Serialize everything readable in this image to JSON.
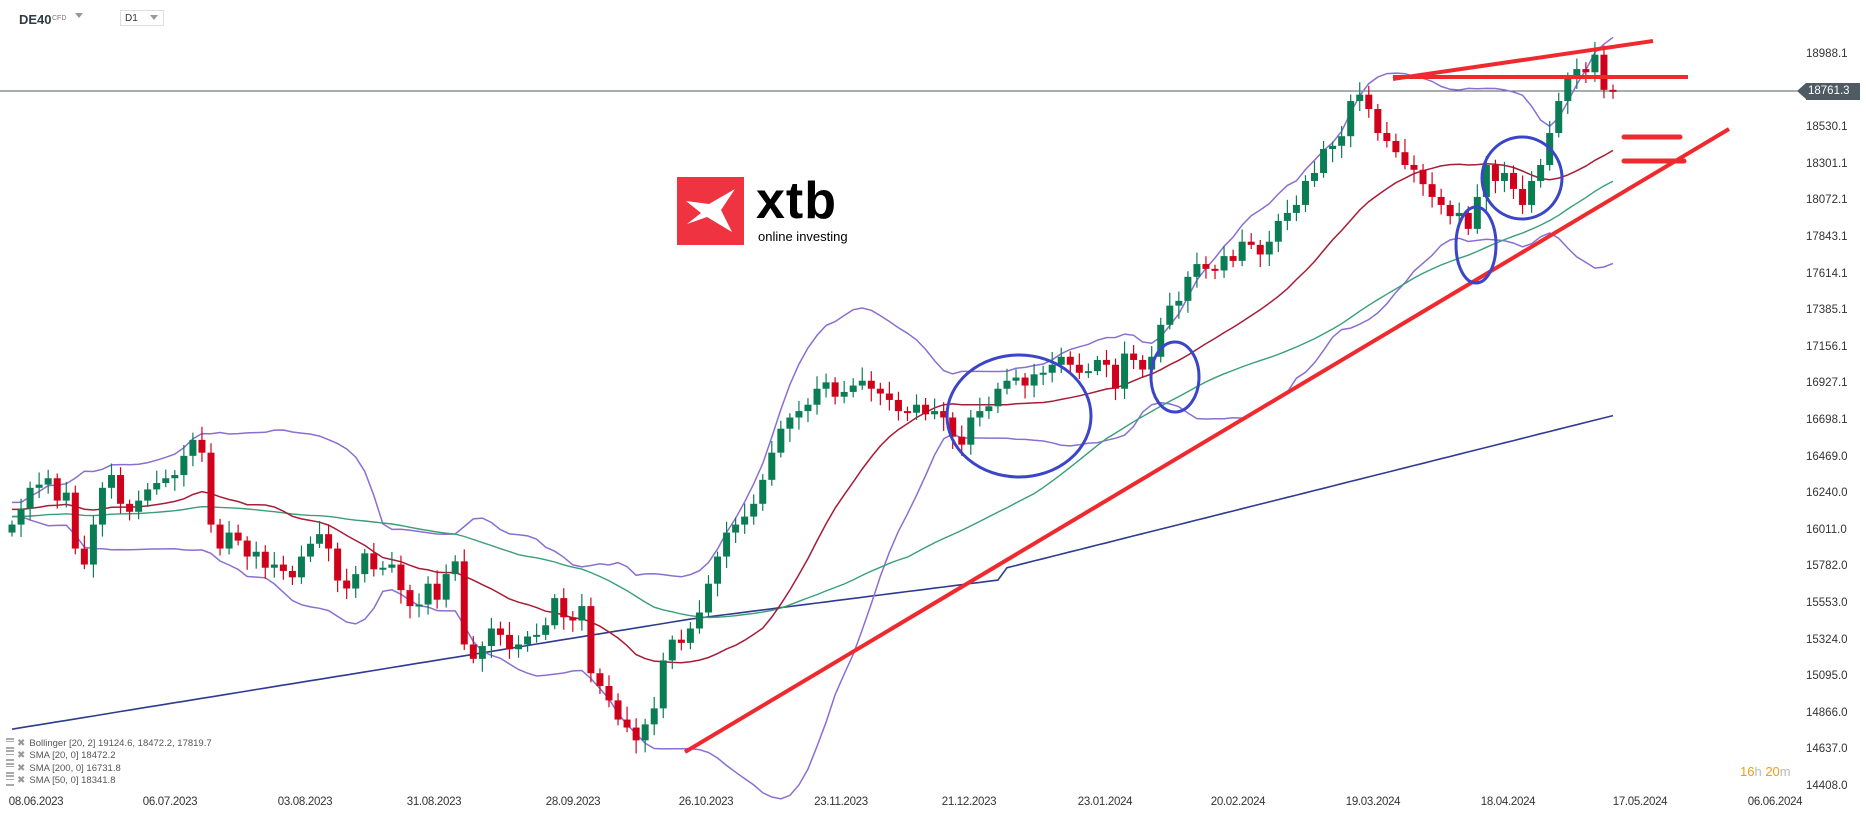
{
  "header": {
    "symbol": "DE40",
    "symbol_type": "CFD",
    "timeframe": "D1"
  },
  "logo": {
    "brand": "xtb",
    "tagline": "online investing",
    "color": "#ef3340"
  },
  "price_axis": {
    "labels": [
      "18988.1",
      "18530.1",
      "18301.1",
      "18072.1",
      "17843.1",
      "17614.1",
      "17385.1",
      "17156.1",
      "16927.1",
      "16698.1",
      "16469.0",
      "16240.0",
      "16011.0",
      "15782.0",
      "15553.0",
      "15324.0",
      "15095.0",
      "14866.0",
      "14637.0",
      "14408.0"
    ],
    "current_price": "18761.3"
  },
  "time_axis": {
    "labels": [
      "08.06.2023",
      "06.07.2023",
      "03.08.2023",
      "31.08.2023",
      "28.09.2023",
      "26.10.2023",
      "23.11.2023",
      "21.12.2023",
      "23.01.2024",
      "20.02.2024",
      "19.03.2024",
      "18.04.2024",
      "17.05.2024",
      "06.06.2024"
    ]
  },
  "timer": {
    "hours": "16",
    "h_unit": "h",
    "minutes": "20",
    "m_unit": "m"
  },
  "legend": [
    {
      "label": "Bollinger  [20, 2] 19124.6,  18472.2,  17819.7"
    },
    {
      "label": "SMA [20, 0] 18472.2"
    },
    {
      "label": "SMA [200, 0] 16731.8"
    },
    {
      "label": "SMA [50, 0] 18341.8"
    }
  ],
  "colors": {
    "bull": "#0b7d55",
    "bear": "#d0021b",
    "bollinger": "#8a6fd1",
    "sma20": "#a51d36",
    "sma50": "#3a9e78",
    "sma200": "#2e3b8f",
    "trendline": "#ee2a2f",
    "ellipse": "#3a45c8",
    "price_line": "#4e5b63"
  },
  "chart_data": {
    "type": "candlestick",
    "title": "DE40 CFD D1",
    "xlabel": "",
    "ylabel": "",
    "ylim": [
      14408.0,
      19216
    ],
    "x_tick_labels": [
      "08.06.2023",
      "06.07.2023",
      "03.08.2023",
      "31.08.2023",
      "28.09.2023",
      "26.10.2023",
      "23.11.2023",
      "21.12.2023",
      "23.01.2024",
      "20.02.2024",
      "19.03.2024",
      "18.04.2024",
      "17.05.2024",
      "06.06.2024"
    ],
    "y_tick_labels": [
      18988.1,
      18761.3,
      18530.1,
      18301.1,
      18072.1,
      17843.1,
      17614.1,
      17385.1,
      17156.1,
      16927.1,
      16698.1,
      16469.0,
      16240.0,
      16011.0,
      15782.0,
      15553.0,
      15324.0,
      15095.0,
      14866.0,
      14637.0,
      14408.0
    ],
    "last_price": 18761.3,
    "indicators": {
      "bollinger": {
        "period": 20,
        "dev": 2,
        "upper": 19124.6,
        "middle": 18472.2,
        "lower": 17819.7
      },
      "sma20": 18472.2,
      "sma200": 16731.8,
      "sma50": 18341.8
    },
    "closes_approx": [
      16050,
      16150,
      16280,
      16300,
      16340,
      16200,
      16250,
      15900,
      15800,
      16050,
      16280,
      16360,
      16180,
      16130,
      16200,
      16270,
      16310,
      16340,
      16360,
      16480,
      16580,
      16500,
      16050,
      15900,
      16000,
      15950,
      15850,
      15880,
      15780,
      15800,
      15760,
      15720,
      15850,
      15930,
      15990,
      15900,
      15700,
      15650,
      15740,
      15870,
      15770,
      15780,
      15800,
      15640,
      15540,
      15550,
      15680,
      15580,
      15740,
      15820,
      15300,
      15210,
      15290,
      15400,
      15360,
      15270,
      15300,
      15350,
      15360,
      15420,
      15590,
      15470,
      15450,
      15540,
      15120,
      15040,
      14950,
      14830,
      14780,
      14700,
      14800,
      14900,
      15200,
      15330,
      15310,
      15400,
      15500,
      15680,
      15850,
      16000,
      16050,
      16100,
      16180,
      16330,
      16500,
      16650,
      16720,
      16760,
      16800,
      16900,
      16940,
      16850,
      16880,
      16920,
      16950,
      16900,
      16870,
      16830,
      16760,
      16750,
      16800,
      16740,
      16760,
      16720,
      16600,
      16550,
      16720,
      16760,
      16790,
      16900,
      16950,
      16970,
      16920,
      16990,
      17000,
      17050,
      17100,
      17050,
      17000,
      17010,
      17080,
      17050,
      16900,
      17120,
      17080,
      17020,
      17100,
      17300,
      17420,
      17450,
      17600,
      17680,
      17650,
      17640,
      17730,
      17700,
      17820,
      17800,
      17740,
      17820,
      17950,
      18000,
      18050,
      18200,
      18250,
      18400,
      18420,
      18480,
      18700,
      18740,
      18650,
      18500,
      18450,
      18380,
      18300,
      18270,
      18180,
      18100,
      18050,
      17980,
      18000,
      17900,
      18100,
      18300,
      18200,
      18250,
      18150,
      18050,
      18200,
      18300,
      18500,
      18700,
      18850,
      18900,
      18880,
      18990,
      18770,
      18760
    ],
    "trendlines": [
      {
        "name": "rising support",
        "from": [
          "26.10.2023",
          14640
        ],
        "to": [
          "~27.05.2024",
          18560
        ]
      },
      {
        "name": "resistance",
        "level": 18890
      },
      {
        "name": "rising resistance",
        "from": [
          "~25.03.2024",
          18890
        ],
        "to": [
          "~30.05.2024",
          19090
        ]
      }
    ]
  }
}
